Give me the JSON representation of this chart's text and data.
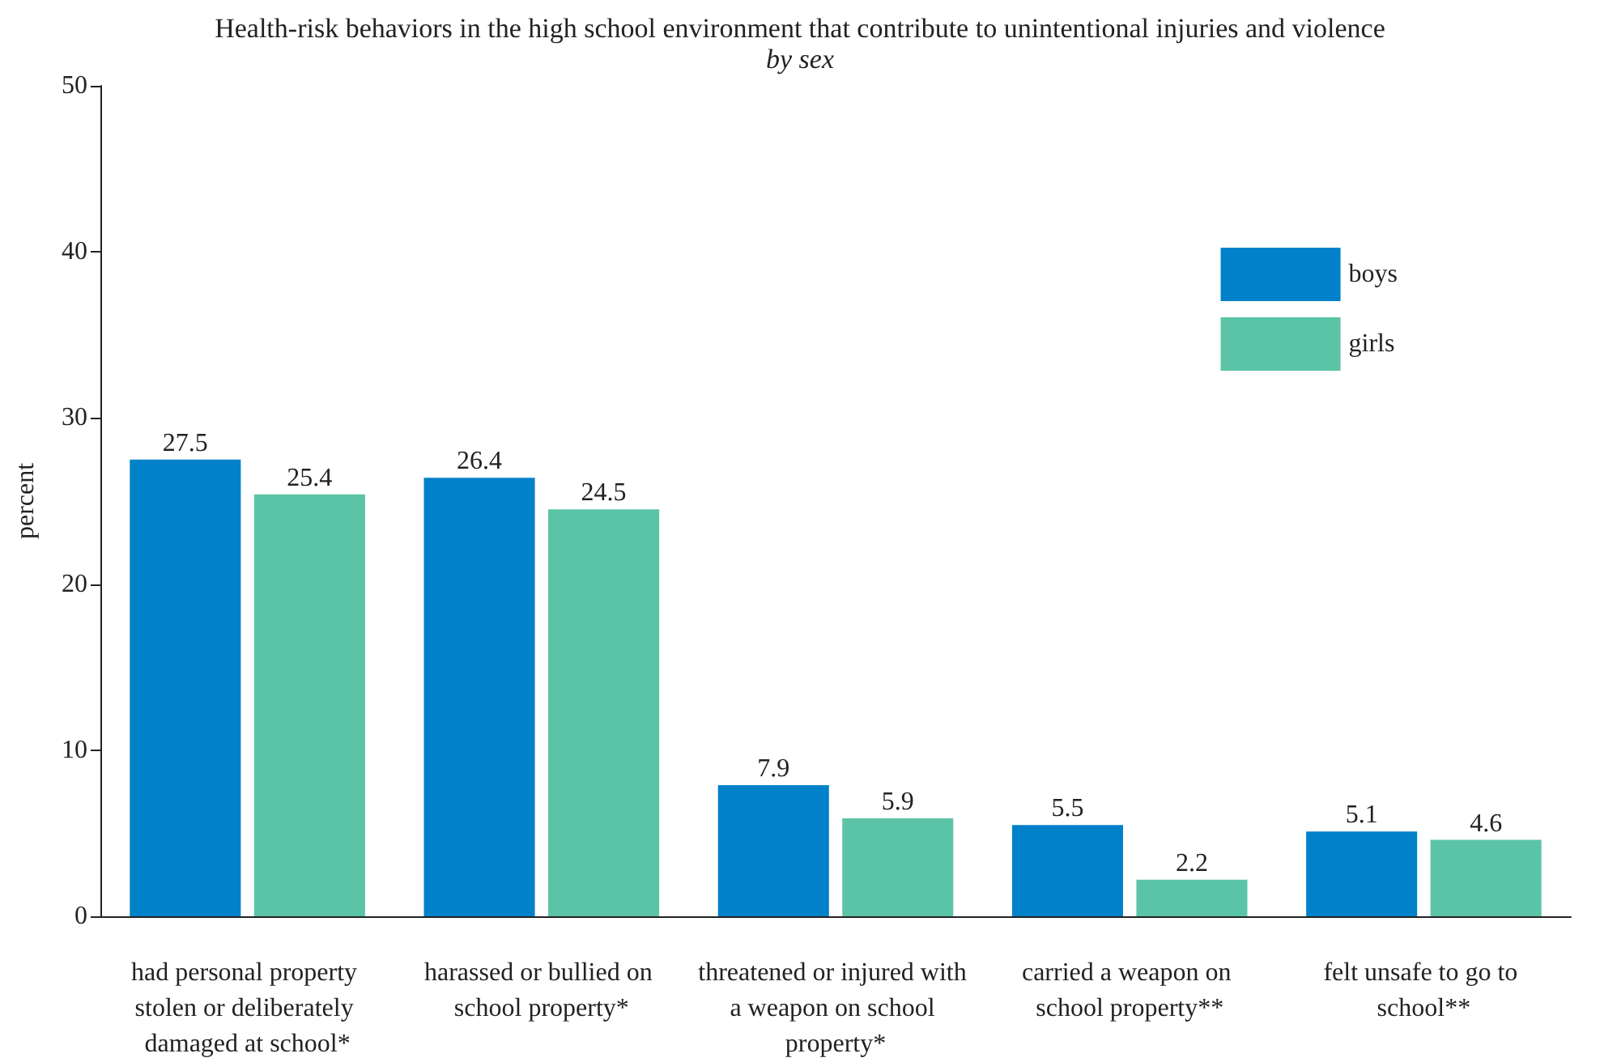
{
  "chart_data": {
    "type": "bar",
    "title": "Health-risk behaviors in the high school environment that contribute to unintentional injuries and violence",
    "subtitle": "by sex",
    "ylabel": "percent",
    "categories": [
      "had personal property stolen or deliberately damaged at school*",
      "harassed or bullied on school property*",
      "threatened or injured with a weapon on school property*",
      "carried a weapon on school property**",
      "felt unsafe to go to school**"
    ],
    "series": [
      {
        "name": "boys",
        "color": "#0081c9",
        "values": [
          27.5,
          26.4,
          7.9,
          5.5,
          5.1
        ]
      },
      {
        "name": "girls",
        "color": "#5bc4a6",
        "values": [
          25.4,
          24.5,
          5.9,
          2.2,
          4.6
        ]
      }
    ],
    "ylim": [
      0,
      50
    ],
    "yticks": [
      0,
      10,
      20,
      30,
      40,
      50
    ],
    "grid": false,
    "legend": "top right",
    "data_labels": true
  }
}
